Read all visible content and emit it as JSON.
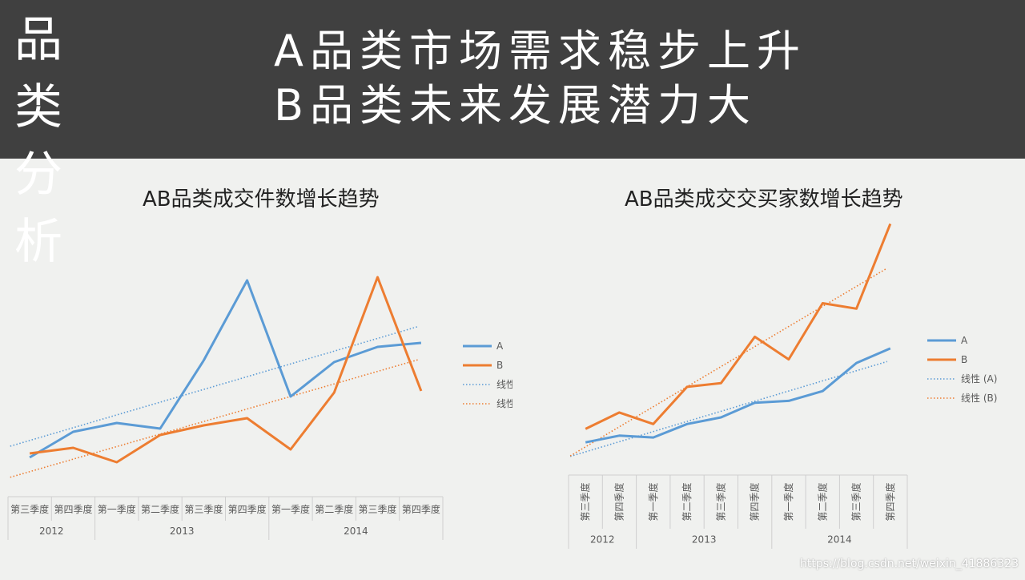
{
  "header": {
    "side_title_line1": "品 类",
    "side_title_line2": "分 析",
    "headline_line1": "A品类市场需求稳步上升",
    "headline_line2": "B品类未来发展潜力大"
  },
  "colors": {
    "A": "#5b9bd5",
    "B": "#ed7d31",
    "header_bg": "#404040",
    "page_bg": "#f0f1ef"
  },
  "chart_data": [
    {
      "type": "line",
      "title": "AB品类成交件数增长趋势",
      "categories": [
        "第三季度",
        "第四季度",
        "第一季度",
        "第二季度",
        "第三季度",
        "第四季度",
        "第一季度",
        "第二季度",
        "第三季度",
        "第四季度"
      ],
      "year_groups": [
        {
          "label": "2012",
          "count": 2
        },
        {
          "label": "2013",
          "count": 4
        },
        {
          "label": "2014",
          "count": 4
        }
      ],
      "series": [
        {
          "name": "A",
          "values": [
            7,
            39,
            50,
            43,
            128,
            228,
            83,
            126,
            145,
            150
          ]
        },
        {
          "name": "B",
          "values": [
            12,
            19,
            1,
            35,
            47,
            56,
            17,
            88,
            232,
            90
          ]
        }
      ],
      "trendlines": [
        {
          "name": "线性 (A)",
          "of": "A"
        },
        {
          "name": "线性 (B)",
          "of": "B"
        }
      ],
      "ylim": [
        -20,
        260
      ],
      "legend": "right"
    },
    {
      "type": "line",
      "title": "AB品类成交交买家数增长趋势",
      "categories": [
        "第三季度",
        "第四季度",
        "第一季度",
        "第二季度",
        "第三季度",
        "第四季度",
        "第一季度",
        "第二季度",
        "第三季度",
        "第四季度"
      ],
      "year_groups": [
        {
          "label": "2012",
          "count": 2
        },
        {
          "label": "2013",
          "count": 4
        },
        {
          "label": "2014",
          "count": 4
        }
      ],
      "series": [
        {
          "name": "A",
          "values": [
            27,
            38,
            35,
            57,
            68,
            92,
            95,
            111,
            157,
            181
          ]
        },
        {
          "name": "B",
          "values": [
            49,
            76,
            57,
            118,
            124,
            200,
            163,
            255,
            246,
            385
          ]
        }
      ],
      "trendlines": [
        {
          "name": "线性 (A)",
          "of": "A"
        },
        {
          "name": "线性 (B)",
          "of": "B"
        }
      ],
      "ylim": [
        -20,
        400
      ],
      "legend": "right"
    }
  ],
  "watermark": "https://blog.csdn.net/weixin_41886323"
}
